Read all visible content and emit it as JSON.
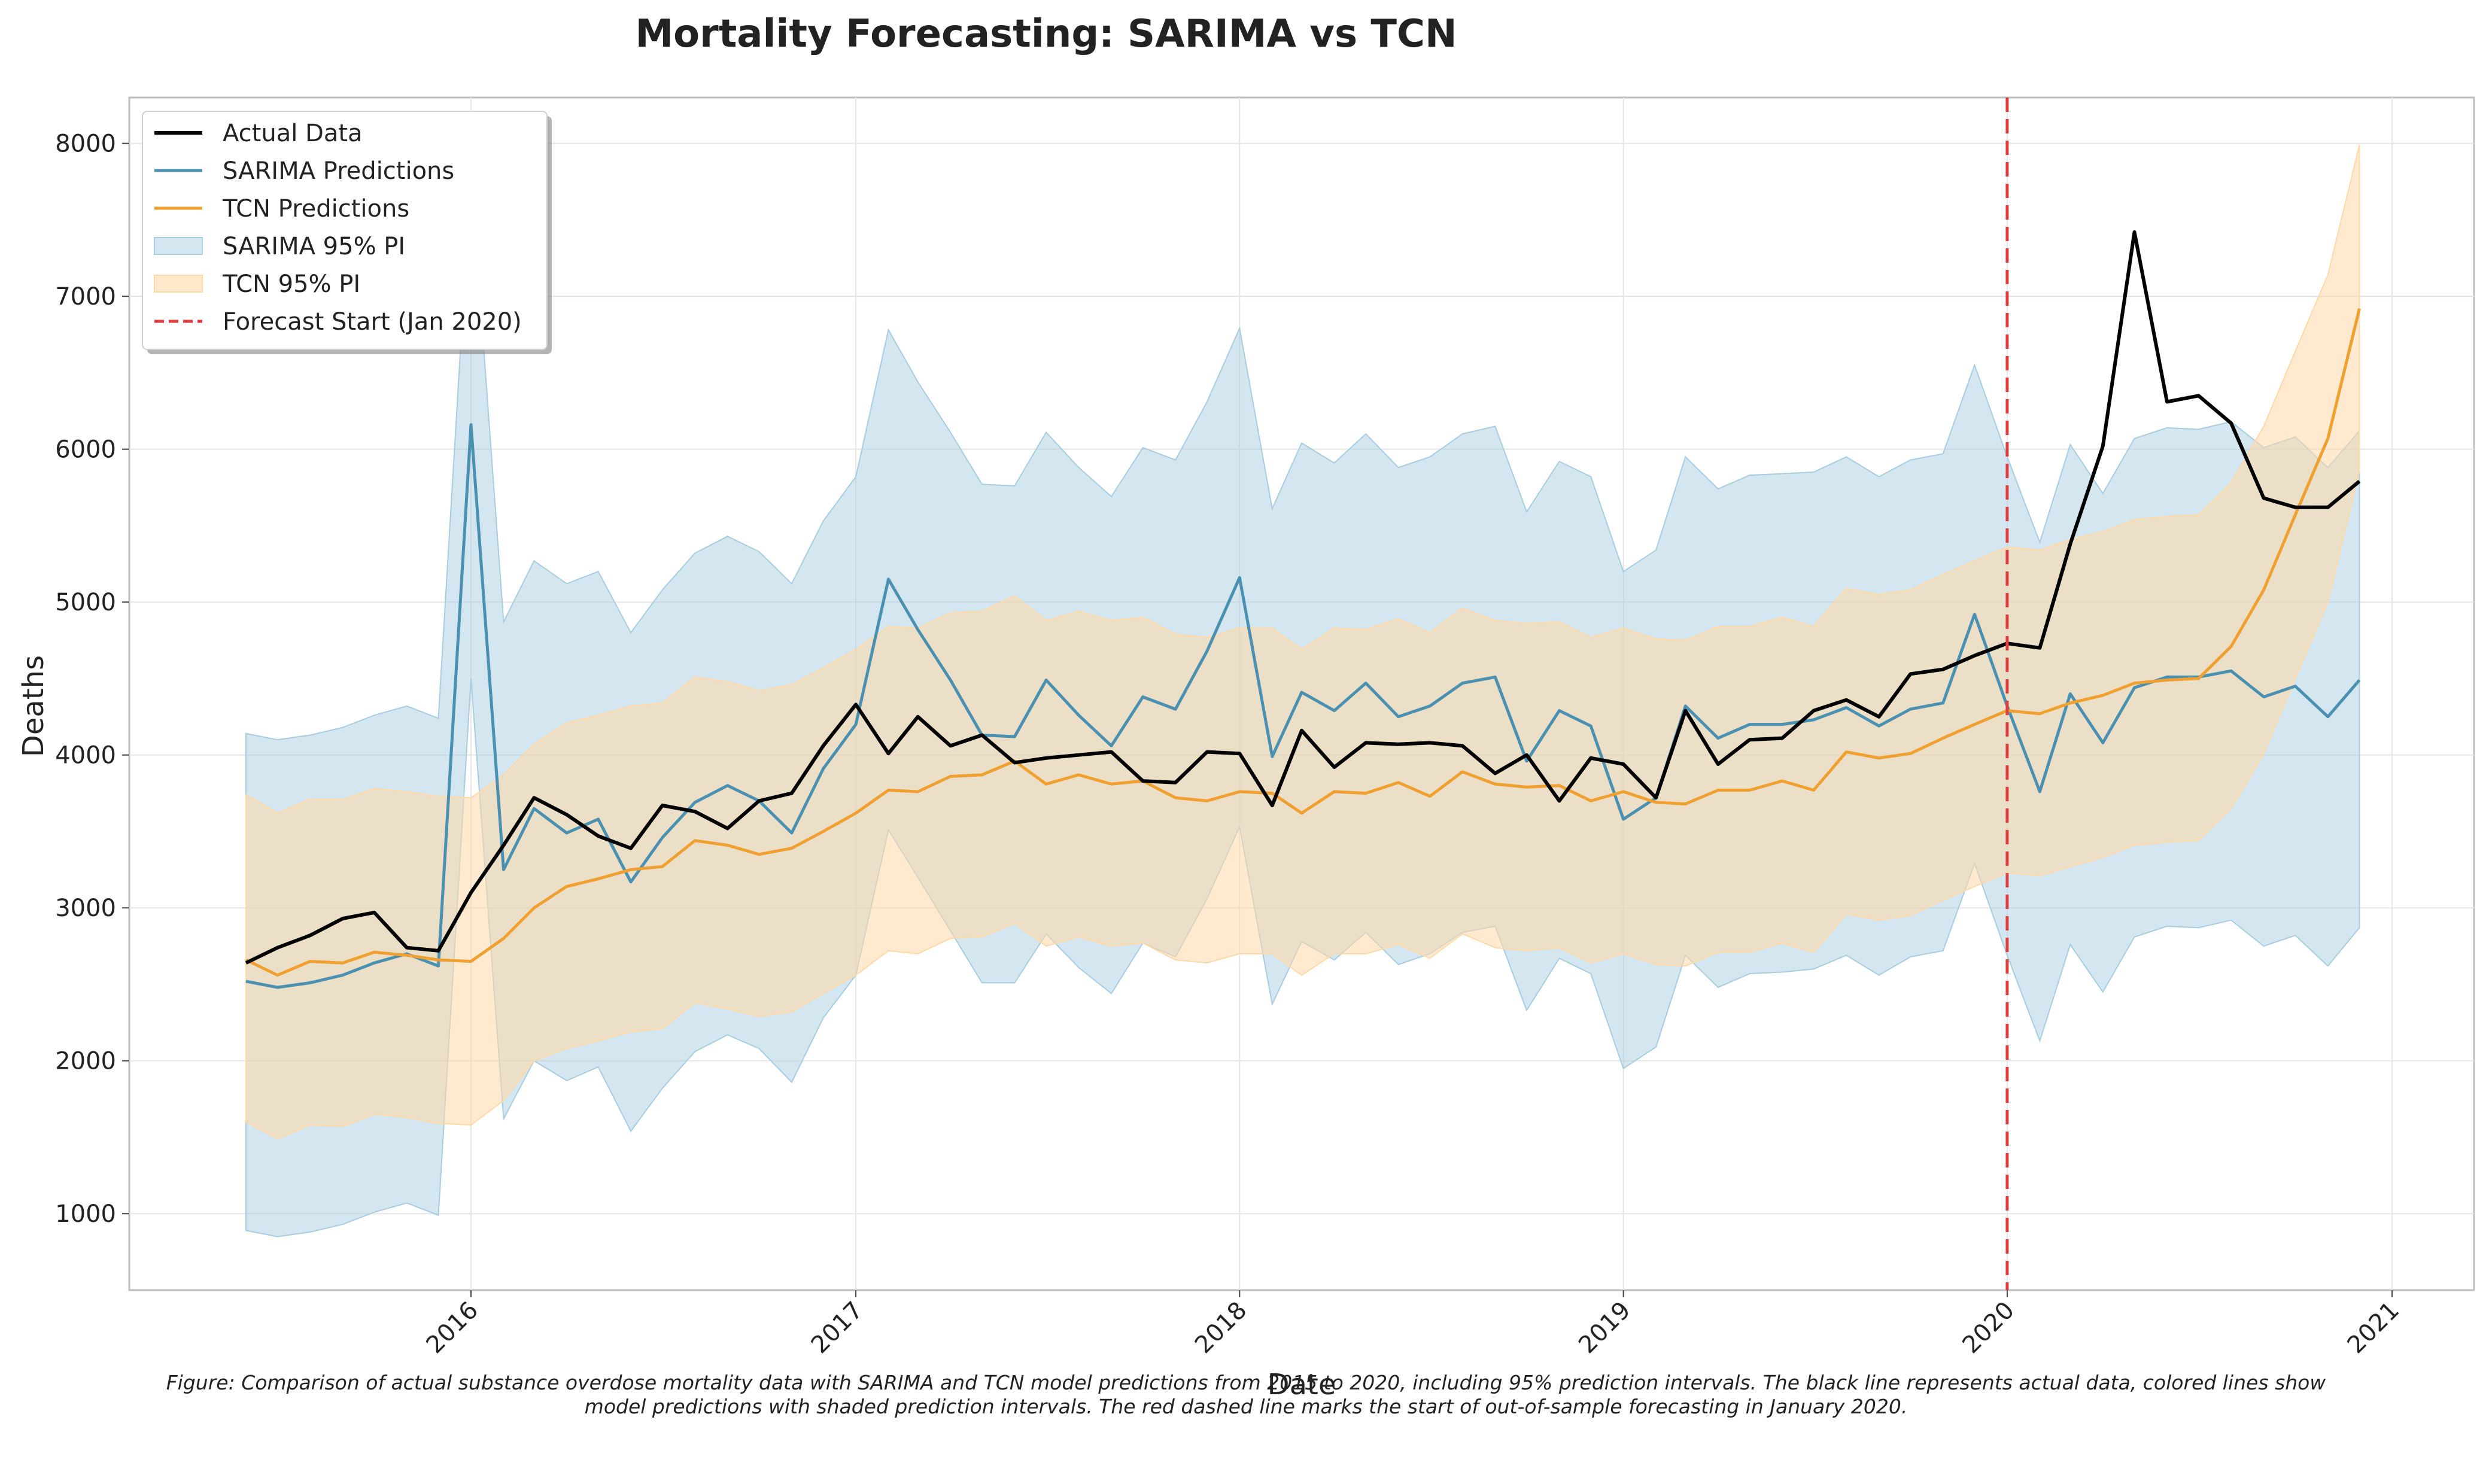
{
  "chart_data": {
    "type": "line",
    "title": "Mortality Forecasting: SARIMA vs TCN",
    "xlabel": "Date",
    "ylabel": "Deaths",
    "ylim": [
      500,
      8300
    ],
    "xlim": [
      "2015-02-10",
      "2021-03-20"
    ],
    "yticks": [
      1000,
      2000,
      3000,
      4000,
      5000,
      6000,
      7000,
      8000
    ],
    "xticks": [
      "2016-01-01",
      "2017-01-01",
      "2018-01-01",
      "2019-01-01",
      "2020-01-01",
      "2021-01-01"
    ],
    "xtick_labels": [
      "2016",
      "2017",
      "2018",
      "2019",
      "2020",
      "2021"
    ],
    "grid": true,
    "legend_position": "top-left",
    "colors": {
      "actual": "#000000",
      "sarima": "#4a90b0",
      "tcn": "#f0a030",
      "sarima_pi": "#a9cde0",
      "tcn_pi": "#ffd9a8",
      "forecast_line": "#e04040"
    },
    "x": [
      "2015-06",
      "2015-07",
      "2015-08",
      "2015-09",
      "2015-10",
      "2015-11",
      "2015-12",
      "2016-01",
      "2016-02",
      "2016-03",
      "2016-04",
      "2016-05",
      "2016-06",
      "2016-07",
      "2016-08",
      "2016-09",
      "2016-10",
      "2016-11",
      "2016-12",
      "2017-01",
      "2017-02",
      "2017-03",
      "2017-04",
      "2017-05",
      "2017-06",
      "2017-07",
      "2017-08",
      "2017-09",
      "2017-10",
      "2017-11",
      "2017-12",
      "2018-01",
      "2018-02",
      "2018-03",
      "2018-04",
      "2018-05",
      "2018-06",
      "2018-07",
      "2018-08",
      "2018-09",
      "2018-10",
      "2018-11",
      "2018-12",
      "2019-01",
      "2019-02",
      "2019-03",
      "2019-04",
      "2019-05",
      "2019-06",
      "2019-07",
      "2019-08",
      "2019-09",
      "2019-10",
      "2019-11",
      "2019-12",
      "2020-01",
      "2020-02",
      "2020-03",
      "2020-04",
      "2020-05",
      "2020-06",
      "2020-07",
      "2020-08",
      "2020-09",
      "2020-10",
      "2020-11",
      "2020-12"
    ],
    "series": [
      {
        "name": "Actual Data",
        "values": [
          2640,
          2740,
          2820,
          2930,
          2970,
          2740,
          2720,
          3100,
          3410,
          3720,
          3610,
          3470,
          3390,
          3670,
          3630,
          3520,
          3700,
          3750,
          4060,
          4330,
          4010,
          4250,
          4060,
          4130,
          3950,
          3980,
          4000,
          4020,
          3830,
          3820,
          4020,
          4010,
          3670,
          4160,
          3920,
          4080,
          4070,
          4080,
          4060,
          3880,
          4000,
          3700,
          3980,
          3940,
          3720,
          4290,
          3940,
          4100,
          4110,
          4290,
          4360,
          4250,
          4530,
          4560,
          4650,
          4730,
          4700,
          5380,
          6020,
          7420,
          6310,
          6350,
          6170,
          5680,
          5620,
          5620,
          5790
        ]
      },
      {
        "name": "SARIMA Predictions",
        "values": [
          2520,
          2480,
          2510,
          2560,
          2640,
          2700,
          2620,
          6160,
          3250,
          3650,
          3490,
          3580,
          3170,
          3460,
          3690,
          3800,
          3700,
          3490,
          3910,
          4200,
          5150,
          4820,
          4490,
          4130,
          4120,
          4490,
          4260,
          4060,
          4380,
          4300,
          4680,
          5160,
          3990,
          4410,
          4290,
          4470,
          4250,
          4320,
          4470,
          4510,
          3960,
          4290,
          4190,
          3580,
          3720,
          4320,
          4110,
          4200,
          4200,
          4230,
          4310,
          4190,
          4300,
          4340,
          4920,
          4320,
          3760,
          4400,
          4080,
          4440,
          4510,
          4510,
          4550,
          4380,
          4450,
          4250,
          4490
        ]
      },
      {
        "name": "TCN Predictions",
        "values": [
          2660,
          2560,
          2650,
          2640,
          2710,
          2690,
          2660,
          2650,
          2800,
          3000,
          3140,
          3190,
          3250,
          3270,
          3440,
          3410,
          3350,
          3390,
          3500,
          3620,
          3770,
          3760,
          3860,
          3870,
          3960,
          3810,
          3870,
          3810,
          3830,
          3720,
          3700,
          3760,
          3750,
          3620,
          3760,
          3750,
          3820,
          3730,
          3890,
          3810,
          3790,
          3800,
          3700,
          3760,
          3690,
          3680,
          3770,
          3770,
          3830,
          3770,
          4020,
          3980,
          4010,
          4110,
          4200,
          4290,
          4270,
          4340,
          4390,
          4470,
          4490,
          4500,
          4710,
          5080,
          5570,
          6070,
          6920
        ]
      }
    ],
    "bands": [
      {
        "name": "SARIMA 95% PI",
        "lower": [
          890,
          850,
          880,
          930,
          1010,
          1070,
          990,
          4500,
          1620,
          2000,
          1870,
          1960,
          1540,
          1820,
          2060,
          2170,
          2080,
          1860,
          2280,
          2560,
          3510,
          3200,
          2850,
          2510,
          2510,
          2830,
          2610,
          2440,
          2770,
          2680,
          3060,
          3530,
          2370,
          2780,
          2660,
          2840,
          2630,
          2700,
          2840,
          2880,
          2330,
          2670,
          2570,
          1950,
          2090,
          2690,
          2480,
          2570,
          2580,
          2600,
          2690,
          2560,
          2680,
          2720,
          3290,
          2690,
          2130,
          2760,
          2450,
          2810,
          2880,
          2870,
          2920,
          2750,
          2820,
          2620,
          2870
        ],
        "upper": [
          4140,
          4100,
          4130,
          4180,
          4260,
          4320,
          4240,
          7800,
          4870,
          5270,
          5120,
          5200,
          4800,
          5080,
          5320,
          5430,
          5330,
          5120,
          5530,
          5820,
          6780,
          6440,
          6110,
          5770,
          5760,
          6110,
          5880,
          5690,
          6010,
          5930,
          6310,
          6790,
          5610,
          6040,
          5910,
          6100,
          5880,
          5950,
          6100,
          6150,
          5590,
          5920,
          5820,
          5200,
          5340,
          5950,
          5740,
          5830,
          5840,
          5850,
          5950,
          5820,
          5930,
          5970,
          6550,
          5950,
          5390,
          6030,
          5710,
          6070,
          6140,
          6130,
          6180,
          6010,
          6080,
          5880,
          6120
        ]
      },
      {
        "name": "TCN 95% PI",
        "lower": [
          1600,
          1490,
          1580,
          1570,
          1650,
          1630,
          1590,
          1580,
          1740,
          2000,
          2080,
          2130,
          2190,
          2210,
          2380,
          2340,
          2290,
          2320,
          2440,
          2560,
          2720,
          2700,
          2800,
          2810,
          2900,
          2750,
          2810,
          2750,
          2770,
          2660,
          2640,
          2700,
          2700,
          2560,
          2700,
          2700,
          2760,
          2670,
          2830,
          2740,
          2720,
          2740,
          2640,
          2700,
          2630,
          2620,
          2710,
          2710,
          2770,
          2710,
          2960,
          2920,
          2950,
          3050,
          3140,
          3230,
          3210,
          3270,
          3330,
          3410,
          3430,
          3440,
          3650,
          4010,
          4500,
          5000,
          5860
        ],
        "upper": [
          3740,
          3620,
          3710,
          3710,
          3780,
          3760,
          3730,
          3720,
          3870,
          4070,
          4210,
          4260,
          4320,
          4340,
          4510,
          4480,
          4420,
          4460,
          4570,
          4690,
          4840,
          4830,
          4930,
          4940,
          5040,
          4880,
          4940,
          4880,
          4900,
          4790,
          4770,
          4830,
          4830,
          4690,
          4830,
          4820,
          4890,
          4800,
          4960,
          4880,
          4860,
          4870,
          4770,
          4830,
          4760,
          4750,
          4840,
          4840,
          4900,
          4840,
          5090,
          5050,
          5080,
          5180,
          5270,
          5360,
          5340,
          5410,
          5460,
          5540,
          5560,
          5570,
          5780,
          6150,
          6640,
          7140,
          7990
        ]
      }
    ],
    "forecast_start": "2020-01-01",
    "legend_entries": [
      "Actual Data",
      "SARIMA Predictions",
      "TCN Predictions",
      "SARIMA 95% PI",
      "TCN 95% PI",
      "Forecast Start (Jan 2020)"
    ]
  },
  "caption": {
    "line1": "Figure: Comparison of actual substance overdose mortality data with SARIMA and TCN model predictions from 2015 to 2020, including 95% prediction intervals. The black line represents actual data, colored lines show",
    "line2": "model predictions with shaded prediction intervals. The red dashed line marks the start of out-of-sample forecasting in January 2020."
  }
}
